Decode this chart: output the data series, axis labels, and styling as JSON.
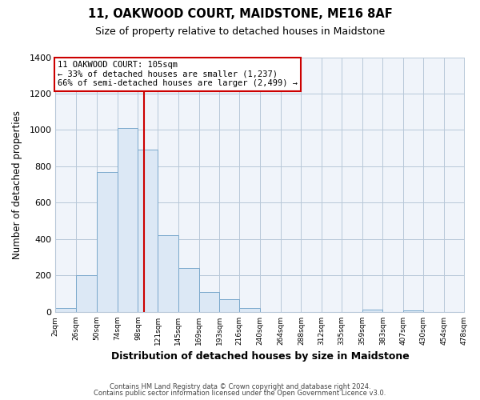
{
  "title": "11, OAKWOOD COURT, MAIDSTONE, ME16 8AF",
  "subtitle": "Size of property relative to detached houses in Maidstone",
  "xlabel": "Distribution of detached houses by size in Maidstone",
  "ylabel": "Number of detached properties",
  "bar_edges": [
    2,
    26,
    50,
    74,
    98,
    121,
    145,
    169,
    193,
    216,
    240,
    264,
    288,
    312,
    335,
    359,
    383,
    407,
    430,
    454,
    478
  ],
  "bar_heights": [
    20,
    200,
    770,
    1010,
    890,
    420,
    240,
    110,
    70,
    20,
    0,
    0,
    0,
    0,
    0,
    15,
    0,
    10,
    0,
    0
  ],
  "bar_color": "#dce8f5",
  "bar_edge_color": "#7aa8cc",
  "vline_x": 105,
  "vline_color": "#cc0000",
  "ylim": [
    0,
    1400
  ],
  "yticks": [
    0,
    200,
    400,
    600,
    800,
    1000,
    1200,
    1400
  ],
  "tick_labels": [
    "2sqm",
    "26sqm",
    "50sqm",
    "74sqm",
    "98sqm",
    "121sqm",
    "145sqm",
    "169sqm",
    "193sqm",
    "216sqm",
    "240sqm",
    "264sqm",
    "288sqm",
    "312sqm",
    "335sqm",
    "359sqm",
    "383sqm",
    "407sqm",
    "430sqm",
    "454sqm",
    "478sqm"
  ],
  "annotation_title": "11 OAKWOOD COURT: 105sqm",
  "annotation_line1": "← 33% of detached houses are smaller (1,237)",
  "annotation_line2": "66% of semi-detached houses are larger (2,499) →",
  "annotation_box_color": "#ffffff",
  "annotation_box_edge": "#cc0000",
  "footer1": "Contains HM Land Registry data © Crown copyright and database right 2024.",
  "footer2": "Contains public sector information licensed under the Open Government Licence v3.0.",
  "bg_color": "#ffffff",
  "plot_bg_color": "#f0f4fa",
  "grid_color": "#b8c8d8"
}
